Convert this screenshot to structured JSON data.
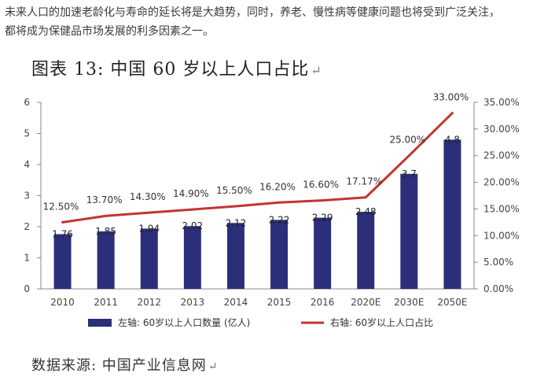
{
  "intro": {
    "line1": "未来人口的加速老龄化与寿命的延长将是大趋势，同时，养老、慢性病等健康问题也将受到广泛关注，",
    "line2": "都将成为保健品市场发展的利多因素之一。"
  },
  "figure": {
    "title": "图表 13:  中国 60 岁以上人口占比",
    "title_mark": "↵",
    "source": "数据来源:  中国产业信息网",
    "source_mark": "↵"
  },
  "chart_data": {
    "type": "bar+line",
    "categories": [
      "2010",
      "2011",
      "2012",
      "2013",
      "2014",
      "2015",
      "2016",
      "2020E",
      "2030E",
      "2050E"
    ],
    "series": [
      {
        "name": "左轴: 60岁以上人口数量 (亿人)",
        "type": "bar",
        "axis": "left",
        "values": [
          1.76,
          1.85,
          1.94,
          2.02,
          2.12,
          2.22,
          2.29,
          2.48,
          3.7,
          4.8
        ],
        "labels": [
          "1.76",
          "1.85",
          "1.94",
          "2.02",
          "2.12",
          "2.22",
          "2.29",
          "2.48",
          "3.7",
          "4.8"
        ]
      },
      {
        "name": "右轴: 60岁以上人口占比",
        "type": "line",
        "axis": "right",
        "values": [
          12.5,
          13.7,
          14.3,
          14.9,
          15.5,
          16.2,
          16.6,
          17.17,
          25.0,
          33.0
        ],
        "labels": [
          "12.50%",
          "13.70%",
          "14.30%",
          "14.90%",
          "15.50%",
          "16.20%",
          "16.60%",
          "17.17%",
          "25.00%",
          "33.00%"
        ]
      }
    ],
    "left_axis": {
      "min": 0,
      "max": 6,
      "ticks": [
        "0",
        "1",
        "2",
        "3",
        "4",
        "5",
        "6"
      ]
    },
    "right_axis": {
      "min": 0,
      "max": 35,
      "ticks": [
        "0.00%",
        "5.00%",
        "10.00%",
        "15.00%",
        "20.00%",
        "25.00%",
        "30.00%",
        "35.00%"
      ]
    },
    "grid": false,
    "legend_position": "bottom",
    "colors": {
      "bar": "#2b2f7a",
      "line": "#c23531",
      "axis": "#888888"
    }
  }
}
